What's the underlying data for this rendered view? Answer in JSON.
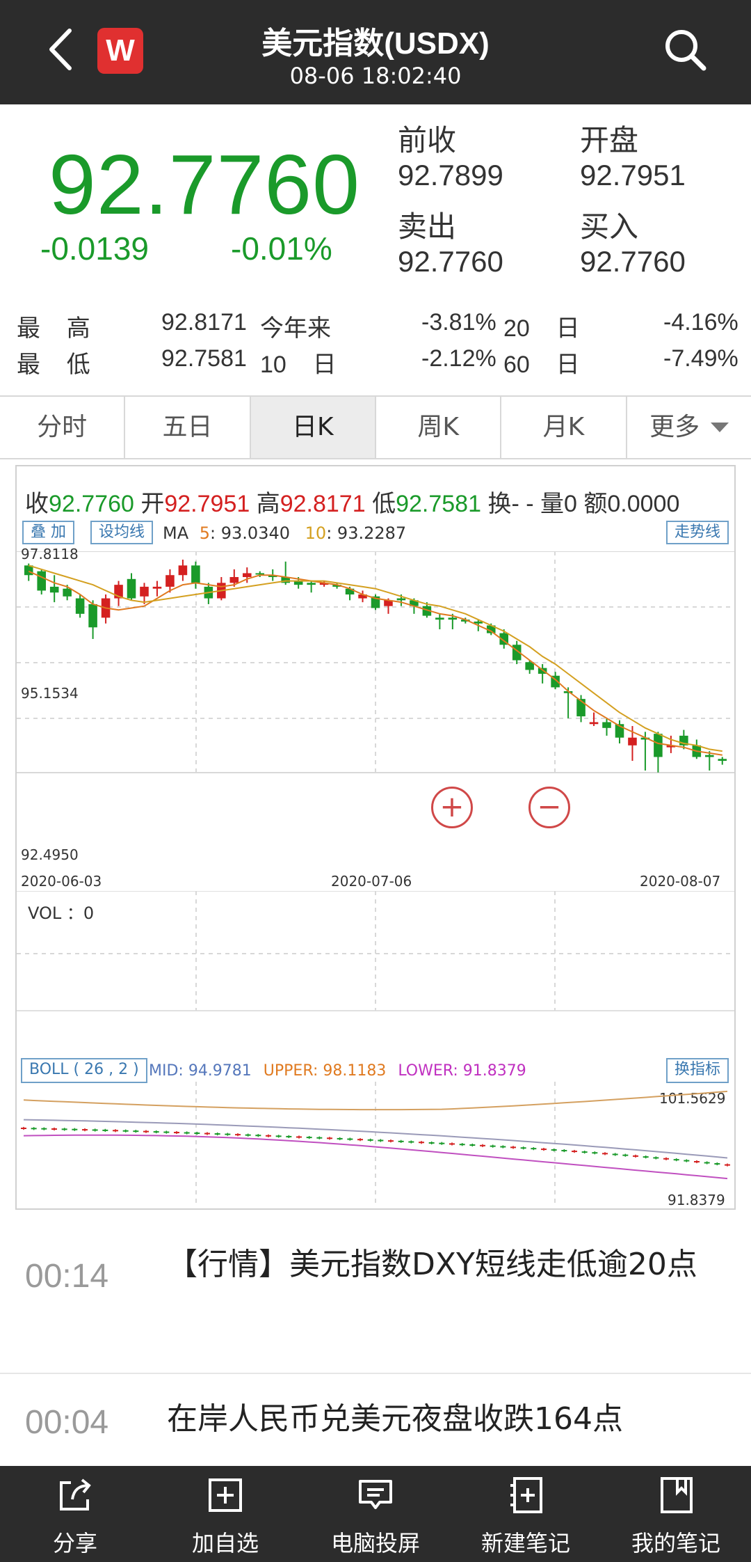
{
  "header": {
    "title": "美元指数(USDX)",
    "time": "08-06 18:02:40",
    "logo": "W",
    "back_icon": "chevron-left-icon",
    "search_icon": "search-icon"
  },
  "quote": {
    "price": "92.7760",
    "change": "-0.0139",
    "change_pct": "-0.01%",
    "prev_close_label": "前收",
    "prev_close": "92.7899",
    "open_label": "开盘",
    "open": "92.7951",
    "ask_label": "卖出",
    "ask": "92.7760",
    "bid_label": "买入",
    "bid": "92.7760"
  },
  "stats": {
    "high_label": "最    高",
    "high": "92.8171",
    "low_label": "最    低",
    "low": "92.7581",
    "ytd_label": "今年来",
    "ytd": "-3.81%",
    "d10_label": "10    日",
    "d10": "-2.12%",
    "d20_label": "20    日",
    "d20": "-4.16%",
    "d60_label": "60    日",
    "d60": "-7.49%"
  },
  "tabs": [
    "分时",
    "五日",
    "日K",
    "周K",
    "月K",
    "更多"
  ],
  "active_tab": "日K",
  "ohlc": {
    "close_label": "收",
    "close": "92.7760",
    "open_label": "开",
    "open": "92.7951",
    "high_label": "高",
    "high": "92.8171",
    "low_label": "低",
    "low": "92.7581",
    "turnover_label": "换",
    "turnover": "- -",
    "volume_label": "量",
    "volume": "0",
    "amount_label": "额",
    "amount": "0.0000"
  },
  "chart_controls": {
    "overlay_btn": "叠 加",
    "ma_settings_btn": "设均线",
    "trendline_btn": "走势线",
    "ma_label": "MA",
    "ma5_label": "5",
    "ma5_value": ": 93.0340",
    "ma10_label": "10",
    "ma10_value": ": 93.2287",
    "vol_label": "VOL  ：0",
    "boll_btn": "BOLL ( 26 , 2 )",
    "boll_mid": "MID: 94.9781",
    "boll_upper": "UPPER: 98.1183",
    "boll_lower": "LOWER: 91.8379",
    "indicator_btn": "换指标",
    "zoom_in": "+",
    "zoom_out": "−"
  },
  "chart_data": {
    "type": "candlestick",
    "y_labels": [
      "97.8118",
      "95.1534",
      "92.4950"
    ],
    "x_labels": [
      "2020-06-03",
      "2020-07-06",
      "2020-08-07"
    ],
    "ylim": [
      92.495,
      97.8118
    ],
    "candles": [
      {
        "o": 97.85,
        "c": 97.6,
        "h": 97.9,
        "l": 97.45
      },
      {
        "o": 97.7,
        "c": 97.2,
        "h": 97.75,
        "l": 97.1
      },
      {
        "o": 97.3,
        "c": 97.15,
        "h": 97.6,
        "l": 96.9
      },
      {
        "o": 97.25,
        "c": 97.05,
        "h": 97.35,
        "l": 96.95
      },
      {
        "o": 97.0,
        "c": 96.6,
        "h": 97.1,
        "l": 96.5
      },
      {
        "o": 96.85,
        "c": 96.25,
        "h": 96.95,
        "l": 95.95
      },
      {
        "o": 96.5,
        "c": 97.0,
        "h": 97.1,
        "l": 96.35
      },
      {
        "o": 97.0,
        "c": 97.35,
        "h": 97.45,
        "l": 96.8
      },
      {
        "o": 97.5,
        "c": 97.0,
        "h": 97.65,
        "l": 96.95
      },
      {
        "o": 97.05,
        "c": 97.3,
        "h": 97.4,
        "l": 96.85
      },
      {
        "o": 97.25,
        "c": 97.3,
        "h": 97.45,
        "l": 97.05
      },
      {
        "o": 97.3,
        "c": 97.6,
        "h": 97.75,
        "l": 97.15
      },
      {
        "o": 97.6,
        "c": 97.85,
        "h": 98.0,
        "l": 97.45
      },
      {
        "o": 97.85,
        "c": 97.4,
        "h": 97.95,
        "l": 97.25
      },
      {
        "o": 97.3,
        "c": 97.0,
        "h": 97.4,
        "l": 96.85
      },
      {
        "o": 97.0,
        "c": 97.4,
        "h": 97.55,
        "l": 96.95
      },
      {
        "o": 97.4,
        "c": 97.55,
        "h": 97.75,
        "l": 97.3
      },
      {
        "o": 97.55,
        "c": 97.65,
        "h": 97.8,
        "l": 97.4
      },
      {
        "o": 97.65,
        "c": 97.62,
        "h": 97.7,
        "l": 97.55
      },
      {
        "o": 97.6,
        "c": 97.55,
        "h": 97.75,
        "l": 97.45
      },
      {
        "o": 97.55,
        "c": 97.4,
        "h": 97.95,
        "l": 97.35
      },
      {
        "o": 97.45,
        "c": 97.35,
        "h": 97.55,
        "l": 97.25
      },
      {
        "o": 97.4,
        "c": 97.35,
        "h": 97.45,
        "l": 97.15
      },
      {
        "o": 97.35,
        "c": 97.4,
        "h": 97.45,
        "l": 97.3
      },
      {
        "o": 97.35,
        "c": 97.3,
        "h": 97.4,
        "l": 97.25
      },
      {
        "o": 97.25,
        "c": 97.1,
        "h": 97.3,
        "l": 96.95
      },
      {
        "o": 97.0,
        "c": 97.1,
        "h": 97.2,
        "l": 96.9
      },
      {
        "o": 97.05,
        "c": 96.75,
        "h": 97.1,
        "l": 96.7
      },
      {
        "o": 96.8,
        "c": 96.95,
        "h": 97.0,
        "l": 96.6
      },
      {
        "o": 97.0,
        "c": 96.95,
        "h": 97.1,
        "l": 96.8
      },
      {
        "o": 96.95,
        "c": 96.8,
        "h": 97.0,
        "l": 96.6
      },
      {
        "o": 96.8,
        "c": 96.55,
        "h": 96.9,
        "l": 96.5
      },
      {
        "o": 96.5,
        "c": 96.45,
        "h": 96.6,
        "l": 96.2
      },
      {
        "o": 96.5,
        "c": 96.45,
        "h": 96.6,
        "l": 96.2
      },
      {
        "o": 96.45,
        "c": 96.4,
        "h": 96.5,
        "l": 96.35
      },
      {
        "o": 96.4,
        "c": 96.35,
        "h": 96.45,
        "l": 96.15
      },
      {
        "o": 96.3,
        "c": 96.1,
        "h": 96.35,
        "l": 96.05
      },
      {
        "o": 96.1,
        "c": 95.8,
        "h": 96.2,
        "l": 95.7
      },
      {
        "o": 95.8,
        "c": 95.4,
        "h": 95.9,
        "l": 95.3
      },
      {
        "o": 95.35,
        "c": 95.15,
        "h": 95.4,
        "l": 95.05
      },
      {
        "o": 95.2,
        "c": 95.05,
        "h": 95.3,
        "l": 94.8
      },
      {
        "o": 95.0,
        "c": 94.7,
        "h": 95.1,
        "l": 94.65
      },
      {
        "o": 94.6,
        "c": 94.55,
        "h": 94.7,
        "l": 93.9
      },
      {
        "o": 94.4,
        "c": 93.95,
        "h": 94.5,
        "l": 93.8
      },
      {
        "o": 93.75,
        "c": 93.8,
        "h": 94.05,
        "l": 93.7
      },
      {
        "o": 93.8,
        "c": 93.65,
        "h": 93.9,
        "l": 93.45
      },
      {
        "o": 93.75,
        "c": 93.4,
        "h": 93.85,
        "l": 93.25
      },
      {
        "o": 93.2,
        "c": 93.4,
        "h": 93.7,
        "l": 92.8
      },
      {
        "o": 93.4,
        "c": 93.35,
        "h": 93.55,
        "l": 92.55
      },
      {
        "o": 93.5,
        "c": 92.9,
        "h": 93.55,
        "l": 92.5
      },
      {
        "o": 93.15,
        "c": 93.2,
        "h": 93.45,
        "l": 93.0
      },
      {
        "o": 93.45,
        "c": 93.2,
        "h": 93.6,
        "l": 93.1
      },
      {
        "o": 93.2,
        "c": 92.9,
        "h": 93.35,
        "l": 92.85
      },
      {
        "o": 92.95,
        "c": 92.9,
        "h": 93.05,
        "l": 92.55
      },
      {
        "o": 92.85,
        "c": 92.8,
        "h": 92.9,
        "l": 92.7
      }
    ],
    "ma5": [
      97.7,
      97.55,
      97.4,
      97.3,
      97.1,
      96.85,
      96.75,
      96.7,
      96.75,
      96.8,
      97.0,
      97.2,
      97.35,
      97.4,
      97.35,
      97.3,
      97.35,
      97.5,
      97.6,
      97.6,
      97.55,
      97.5,
      97.45,
      97.4,
      97.35,
      97.25,
      97.1,
      97.0,
      96.95,
      96.9,
      96.8,
      96.7,
      96.6,
      96.55,
      96.45,
      96.3,
      96.15,
      95.9,
      95.65,
      95.4,
      95.15,
      94.9,
      94.6,
      94.35,
      94.1,
      93.9,
      93.7,
      93.55,
      93.4,
      93.25,
      93.2,
      93.15,
      93.05,
      93.0,
      92.95
    ],
    "ma10": [
      97.85,
      97.75,
      97.65,
      97.55,
      97.45,
      97.35,
      97.2,
      97.05,
      96.95,
      96.9,
      96.95,
      97.0,
      97.05,
      97.1,
      97.15,
      97.2,
      97.25,
      97.3,
      97.35,
      97.4,
      97.45,
      97.45,
      97.45,
      97.45,
      97.4,
      97.35,
      97.3,
      97.25,
      97.15,
      97.05,
      96.95,
      96.85,
      96.8,
      96.7,
      96.6,
      96.45,
      96.3,
      96.15,
      95.95,
      95.75,
      95.5,
      95.3,
      95.05,
      94.8,
      94.55,
      94.3,
      94.05,
      93.85,
      93.65,
      93.5,
      93.35,
      93.25,
      93.2,
      93.1,
      93.05
    ],
    "boll_labels": [
      "101.5629",
      "91.8379"
    ],
    "boll_ylim": [
      91.8379,
      101.5629
    ]
  },
  "news": [
    {
      "time": "00:14",
      "text": "【行情】美元指数DXY短线走低逾20点"
    },
    {
      "time": "00:04",
      "text": "在岸人民币兑美元夜盘收跌164点"
    }
  ],
  "bottombar": [
    {
      "label": "分享",
      "icon": "share-icon"
    },
    {
      "label": "加自选",
      "icon": "add-watchlist-icon"
    },
    {
      "label": "电脑投屏",
      "icon": "screen-cast-icon"
    },
    {
      "label": "新建笔记",
      "icon": "new-note-icon"
    },
    {
      "label": "我的笔记",
      "icon": "my-notes-icon"
    }
  ],
  "colors": {
    "up": "#d42020",
    "down": "#1a9a2a",
    "header_bg": "#2c2c2c",
    "ma5": "#e07a20",
    "ma10": "#d4a020"
  }
}
